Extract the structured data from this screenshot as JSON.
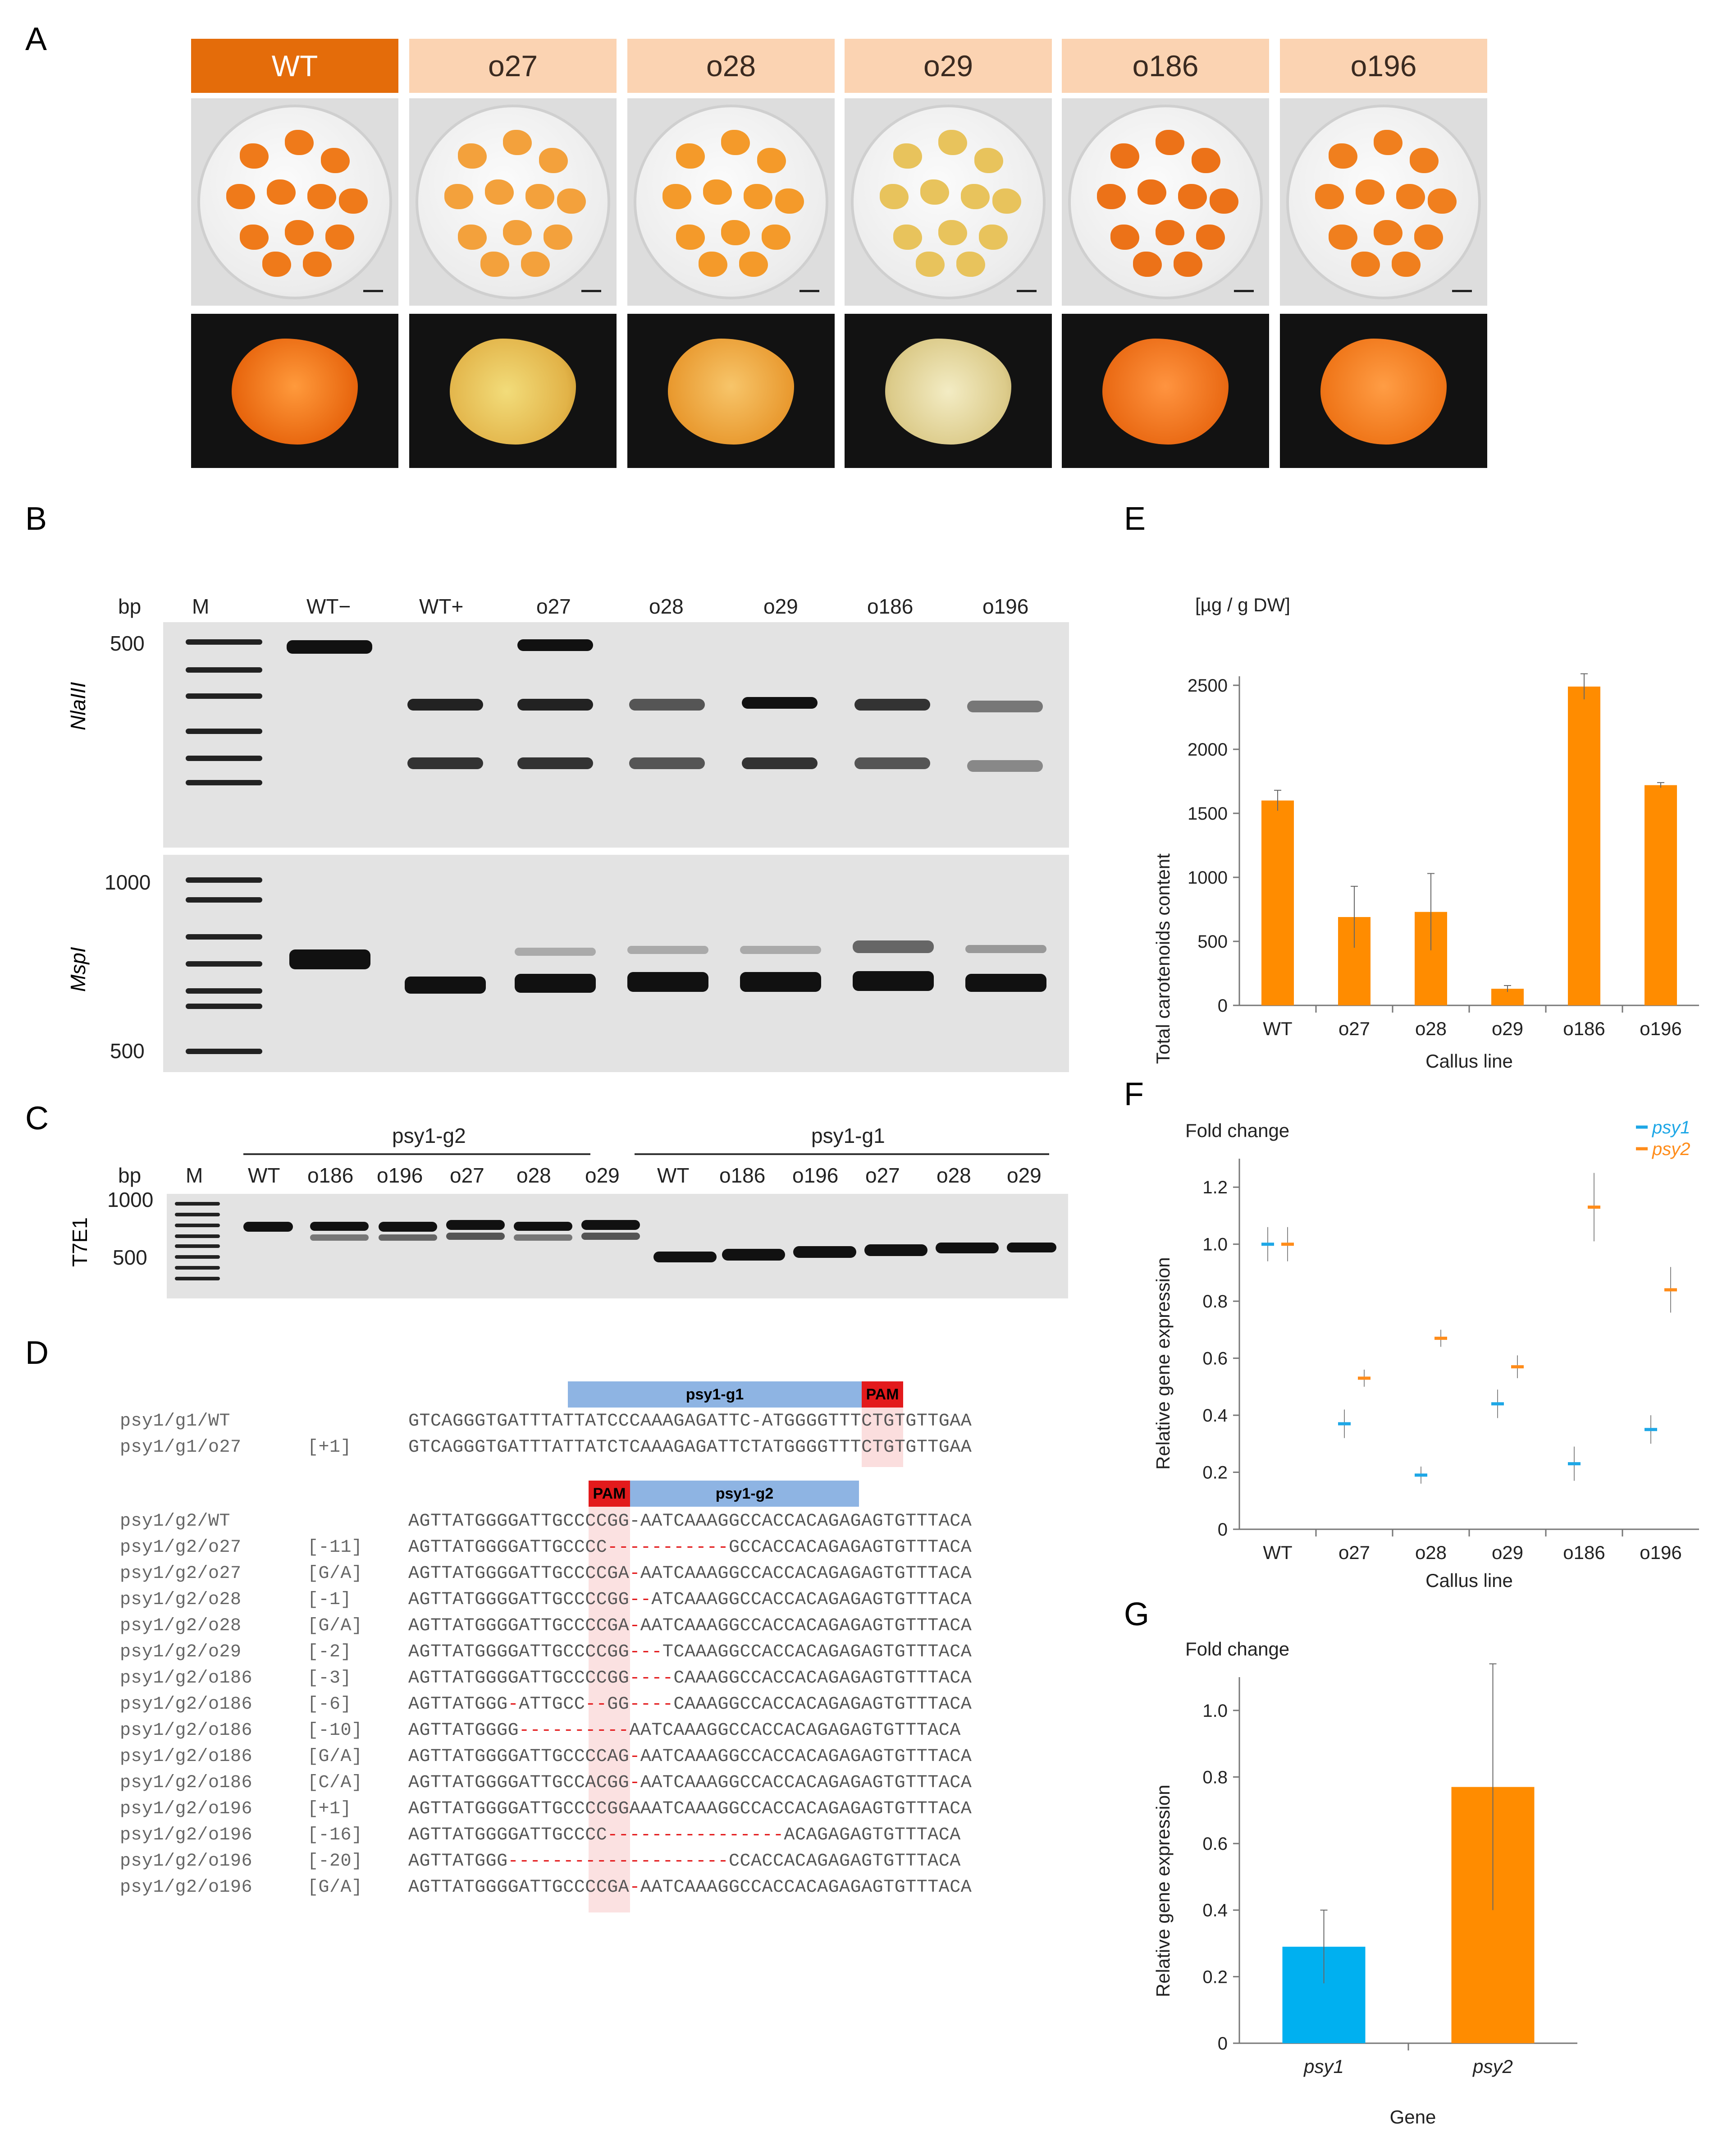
{
  "panels": {
    "A": "A",
    "B": "B",
    "C": "C",
    "D": "D",
    "E": "E",
    "F": "F",
    "G": "G"
  },
  "panelA": {
    "lines": [
      "WT",
      "o27",
      "o28",
      "o29",
      "o186",
      "o196"
    ]
  },
  "panelB": {
    "bp": "bp",
    "lanes": [
      "M",
      "WT−",
      "WT+",
      "o27",
      "o28",
      "o29",
      "o186",
      "o196"
    ],
    "enzyme1": "NlaIII",
    "enzyme2": "MspI",
    "size_500a": "500",
    "size_1000": "1000",
    "size_500b": "500"
  },
  "panelC": {
    "bp": "bp",
    "group1": "psy1-g2",
    "group2": "psy1-g1",
    "m": "M",
    "lanes1": [
      "WT",
      "o186",
      "o196",
      "o27",
      "o28",
      "o29"
    ],
    "lanes2": [
      "WT",
      "o186",
      "o196",
      "o27",
      "o28",
      "o29"
    ],
    "size_1000": "1000",
    "size_500": "500",
    "enzyme": "T7E1"
  },
  "panelD": {
    "g1_label": "psy1-g1",
    "pam": "PAM",
    "g2_label": "psy1-g2",
    "g1_rows": [
      {
        "name": "psy1/g1/WT",
        "tag": "",
        "seq": "GTCAGGGTGATTTATTATCCCAAAGAGATTC-ATGGGGTTTCTGTGTTGAA"
      },
      {
        "name": "psy1/g1/o27",
        "tag": "[+1]",
        "seq": "GTCAGGGTGATTTATTATCTCAAAGAGATTCTATGGGGTTTCTGTGTTGAA"
      }
    ],
    "g2_rows": [
      {
        "name": "psy1/g2/WT",
        "tag": "",
        "seq": "AGTTATGGGGATTGCCCCGG-AATCAAAGGCCACCACAGAGAGTGTTTACA"
      },
      {
        "name": "psy1/g2/o27",
        "tag": "[-11]",
        "seq": "AGTTATGGGGATTGCCCC-----------GCCACCACAGAGAGTGTTTACA"
      },
      {
        "name": "psy1/g2/o27",
        "tag": "[G/A]",
        "seq": "AGTTATGGGGATTGCCCCGA-AATCAAAGGCCACCACAGAGAGTGTTTACA"
      },
      {
        "name": "psy1/g2/o28",
        "tag": "[-1]",
        "seq": "AGTTATGGGGATTGCCCCGG--ATCAAAGGCCACCACAGAGAGTGTTTACA"
      },
      {
        "name": "psy1/g2/o28",
        "tag": "[G/A]",
        "seq": "AGTTATGGGGATTGCCCCGA-AATCAAAGGCCACCACAGAGAGTGTTTACA"
      },
      {
        "name": "psy1/g2/o29",
        "tag": "[-2]",
        "seq": "AGTTATGGGGATTGCCCCGG---TCAAAGGCCACCACAGAGAGTGTTTACA"
      },
      {
        "name": "psy1/g2/o186",
        "tag": "[-3]",
        "seq": "AGTTATGGGGATTGCCCCGG----CAAAGGCCACCACAGAGAGTGTTTACA"
      },
      {
        "name": "psy1/g2/o186",
        "tag": "[-6]",
        "seq": "AGTTATGGG-ATTGCC--GG----CAAAGGCCACCACAGAGAGTGTTTACA"
      },
      {
        "name": "psy1/g2/o186",
        "tag": "[-10]",
        "seq": "AGTTATGGGG----------AATCAAAGGCCACCACAGAGAGTGTTTACA"
      },
      {
        "name": "psy1/g2/o186",
        "tag": "[G/A]",
        "seq": "AGTTATGGGGATTGCCCCAG-AATCAAAGGCCACCACAGAGAGTGTTTACA"
      },
      {
        "name": "psy1/g2/o186",
        "tag": "[C/A]",
        "seq": "AGTTATGGGGATTGCCACGG-AATCAAAGGCCACCACAGAGAGTGTTTACA"
      },
      {
        "name": "psy1/g2/o196",
        "tag": "[+1]",
        "seq": "AGTTATGGGGATTGCCCCGGAAATCAAAGGCCACCACAGAGAGTGTTTACA"
      },
      {
        "name": "psy1/g2/o196",
        "tag": "[-16]",
        "seq": "AGTTATGGGGATTGCCCC----------------ACAGAGAGTGTTTACA"
      },
      {
        "name": "psy1/g2/o196",
        "tag": "[-20]",
        "seq": "AGTTATGGG--------------------CCACCACAGAGAGTGTTTACA"
      },
      {
        "name": "psy1/g2/o196",
        "tag": "[G/A]",
        "seq": "AGTTATGGGGATTGCCCCGA-AATCAAAGGCCACCACAGAGAGTGTTTACA"
      }
    ]
  },
  "chart_data": [
    {
      "type": "bar",
      "panel": "E",
      "title": "[µg / g DW]",
      "xlabel": "Callus line",
      "ylabel": "Total carotenoids content",
      "categories": [
        "WT",
        "o27",
        "o28",
        "o29",
        "o186",
        "o196"
      ],
      "values": [
        1600,
        690,
        730,
        130,
        2490,
        1720
      ],
      "errors": [
        80,
        240,
        300,
        25,
        100,
        20
      ],
      "ylim": [
        0,
        2500
      ],
      "yticks": [
        "0",
        "500",
        "1000",
        "1500",
        "2000",
        "2500"
      ],
      "color": "#ff8c00"
    },
    {
      "type": "scatter",
      "panel": "F",
      "title": "Fold change",
      "xlabel": "Callus line",
      "ylabel": "Relative gene expression",
      "categories": [
        "WT",
        "o27",
        "o28",
        "o29",
        "o186",
        "o196"
      ],
      "series": [
        {
          "name": "psy1",
          "values": [
            1.0,
            0.37,
            0.19,
            0.44,
            0.23,
            0.35
          ],
          "errors": [
            0.06,
            0.05,
            0.03,
            0.05,
            0.06,
            0.05
          ],
          "color": "#1ea7e6"
        },
        {
          "name": "psy2",
          "values": [
            1.0,
            0.53,
            0.67,
            0.57,
            1.13,
            0.84
          ],
          "errors": [
            0.06,
            0.03,
            0.03,
            0.04,
            0.12,
            0.08
          ],
          "color": "#ff8c1a"
        }
      ],
      "ylim": [
        0,
        1.3
      ],
      "yticks": [
        "0",
        "0.2",
        "0.4",
        "0.6",
        "0.8",
        "1.0",
        "1.2"
      ],
      "legend": "top-right"
    },
    {
      "type": "bar",
      "panel": "G",
      "title": "Fold change",
      "xlabel": "Gene",
      "ylabel": "Relative gene expression",
      "categories": [
        "psy1",
        "psy2"
      ],
      "values": [
        0.29,
        0.77
      ],
      "errors": [
        0.11,
        0.37
      ],
      "colors": [
        "#00b0f0",
        "#ff8c00"
      ],
      "ylim": [
        0,
        1.1
      ],
      "yticks": [
        "0",
        "0.2",
        "0.4",
        "0.6",
        "0.8",
        "1.0"
      ]
    }
  ]
}
